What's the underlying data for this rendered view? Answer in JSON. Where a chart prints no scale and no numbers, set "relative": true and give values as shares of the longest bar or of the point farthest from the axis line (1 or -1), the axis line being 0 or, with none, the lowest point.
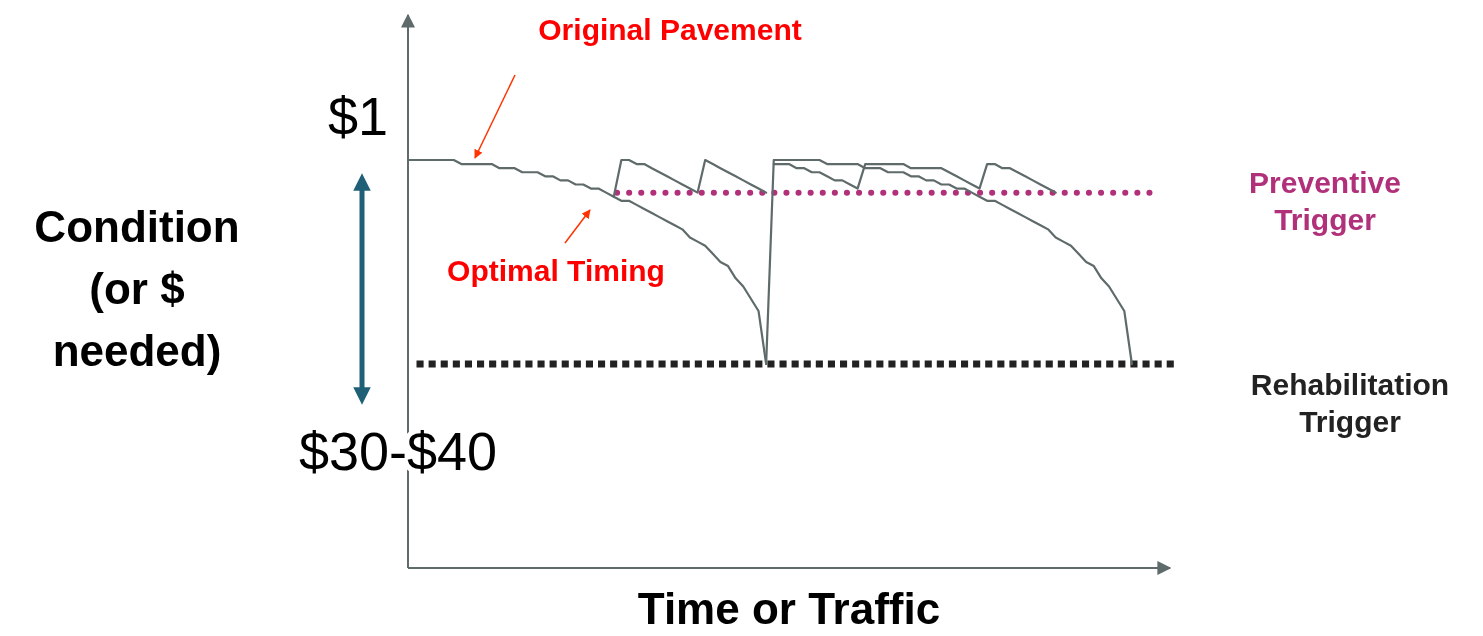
{
  "chart_data": {
    "type": "line",
    "relative": true,
    "xlabel": "Time or Traffic",
    "ylabel": "Condition (or $ needed)",
    "categories": [
      null,
      null,
      null,
      null,
      null,
      null,
      null,
      null,
      null,
      null,
      null,
      null,
      null,
      null,
      null,
      null,
      null,
      null,
      null,
      null,
      null,
      null,
      null,
      null,
      null,
      null,
      null,
      null,
      null,
      null,
      null,
      null,
      null,
      null,
      null,
      null,
      null,
      null,
      null,
      null,
      null,
      null,
      null,
      null,
      null,
      null,
      null,
      null,
      null,
      null,
      null,
      null,
      null,
      null,
      null,
      null,
      null,
      null,
      null,
      null,
      null,
      null,
      null,
      null,
      null,
      null,
      null,
      null,
      null,
      null,
      null,
      null,
      null,
      null,
      null,
      null,
      null,
      null,
      null,
      null,
      null,
      null,
      null,
      null,
      null,
      null,
      null,
      null,
      null,
      null,
      null,
      null,
      null,
      null,
      null,
      null,
      null,
      null,
      null,
      null,
      null
    ],
    "series": [
      {
        "color": "#5f6a6a",
        "values": [
          1.0,
          1.0,
          1.0,
          1.0,
          1.0,
          1.0,
          1.0,
          0.99,
          0.99,
          0.99,
          0.99,
          0.99,
          0.98,
          0.98,
          0.98,
          0.97,
          0.97,
          0.97,
          0.96,
          0.96,
          0.95,
          0.95,
          0.94,
          0.94,
          0.93,
          0.93,
          0.92,
          0.91,
          0.9,
          0.9,
          0.89,
          0.88,
          0.87,
          0.86,
          0.85,
          0.84,
          0.83,
          0.81,
          0.8,
          0.79,
          0.77,
          0.75,
          0.74,
          0.71,
          0.69,
          0.66,
          0.63,
          0.5,
          null,
          null,
          null,
          null,
          null,
          null,
          null,
          null,
          null,
          null,
          null,
          null,
          null,
          null,
          null,
          null,
          null,
          null,
          null,
          null,
          null,
          null,
          null,
          null,
          null,
          null,
          null,
          null,
          null,
          null,
          null,
          null,
          null,
          null,
          null,
          null,
          null,
          null,
          null,
          null,
          null,
          null,
          null,
          null,
          null,
          null,
          null,
          null,
          null,
          null,
          null,
          null,
          null
        ]
      },
      {
        "color": "#5f6a6a",
        "values": [
          null,
          null,
          null,
          null,
          null,
          null,
          null,
          null,
          null,
          null,
          null,
          null,
          null,
          null,
          null,
          null,
          null,
          null,
          null,
          null,
          null,
          null,
          null,
          null,
          null,
          null,
          null,
          0.91,
          1.0,
          1.0,
          0.99,
          0.99,
          0.98,
          0.97,
          0.96,
          0.95,
          0.94,
          0.93,
          0.92,
          1.0,
          0.99,
          0.98,
          0.97,
          0.96,
          0.95,
          0.94,
          0.93,
          0.92,
          null,
          null,
          null,
          null,
          null,
          null,
          null,
          null,
          null,
          null,
          null,
          null,
          null,
          null,
          null,
          null,
          null,
          null,
          null,
          null,
          null,
          null,
          null,
          null,
          null,
          null,
          null,
          null,
          null,
          null,
          null,
          null,
          null,
          null,
          null,
          null,
          null,
          null,
          null,
          null,
          null,
          null,
          null,
          null,
          null,
          null,
          null,
          null,
          null,
          null,
          null,
          null,
          null
        ]
      },
      {
        "color": "#5f6a6a",
        "values": [
          null,
          null,
          null,
          null,
          null,
          null,
          null,
          null,
          null,
          null,
          null,
          null,
          null,
          null,
          null,
          null,
          null,
          null,
          null,
          null,
          null,
          null,
          null,
          null,
          null,
          null,
          null,
          null,
          null,
          null,
          null,
          null,
          null,
          null,
          null,
          null,
          null,
          null,
          null,
          null,
          null,
          null,
          null,
          null,
          null,
          null,
          null,
          0.5,
          1.0,
          1.0,
          1.0,
          1.0,
          1.0,
          1.0,
          1.0,
          0.99,
          0.99,
          0.99,
          0.99,
          0.99,
          0.98,
          0.98,
          0.98,
          0.97,
          0.97,
          0.97,
          0.96,
          0.96,
          0.95,
          0.95,
          0.94,
          0.94,
          0.93,
          0.93,
          0.92,
          0.91,
          0.9,
          0.9,
          0.89,
          0.88,
          0.87,
          0.86,
          0.85,
          0.84,
          0.83,
          0.81,
          0.8,
          0.79,
          0.77,
          0.75,
          0.74,
          0.71,
          0.69,
          0.66,
          0.63,
          0.5,
          null,
          null,
          null,
          null,
          null
        ]
      },
      {
        "color": "#5f6a6a",
        "values": [
          null,
          null,
          null,
          null,
          null,
          null,
          null,
          null,
          null,
          null,
          null,
          null,
          null,
          null,
          null,
          null,
          null,
          null,
          null,
          null,
          null,
          null,
          null,
          null,
          null,
          null,
          null,
          null,
          null,
          null,
          null,
          null,
          null,
          null,
          null,
          null,
          null,
          null,
          null,
          null,
          null,
          null,
          null,
          null,
          null,
          null,
          null,
          null,
          0.99,
          0.99,
          0.99,
          0.98,
          0.98,
          0.97,
          0.97,
          0.96,
          0.95,
          0.95,
          0.94,
          0.93,
          0.99,
          0.99,
          0.99,
          0.99,
          0.99,
          0.99,
          0.98,
          0.98,
          0.98,
          0.98,
          0.98,
          0.97,
          0.96,
          0.95,
          0.94,
          0.93,
          0.99,
          0.99,
          0.98,
          0.98,
          0.97,
          0.96,
          0.95,
          0.94,
          0.93,
          0.92,
          null,
          null,
          null,
          null,
          null,
          null,
          null,
          null,
          null,
          null,
          null,
          null,
          null,
          null,
          null
        ]
      }
    ],
    "ref_lines": [
      {
        "axis": "y",
        "value": 0.92,
        "label": "Preventive Trigger",
        "color": "#b0307a",
        "line_style": "dotted"
      },
      {
        "axis": "y",
        "value": 0.5,
        "label": "Rehabilitation Trigger",
        "color": "#222222",
        "line_style": "dotted"
      }
    ],
    "annotations": [
      "Original Pavement",
      "Optimal Timing",
      "$1",
      "$30-$40"
    ]
  }
}
